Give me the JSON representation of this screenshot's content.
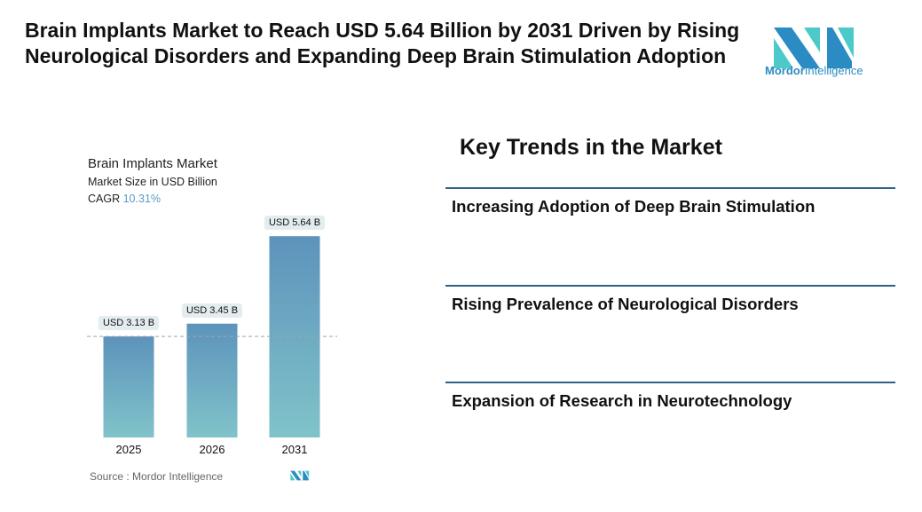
{
  "header": {
    "title": "Brain Implants Market to Reach USD 5.64 Billion by 2031 Driven by Rising Neurological Disorders and Expanding Deep Brain Stimulation Adoption",
    "logo_text_bold": "Mordor",
    "logo_text": "Intelligence"
  },
  "chart_data": {
    "type": "bar",
    "title": "Brain Implants Market",
    "subtitle": "Market Size in USD Billion",
    "cagr_label": "CAGR",
    "cagr_value": "10.31%",
    "categories": [
      "2025",
      "2026",
      "2031"
    ],
    "values": [
      3.13,
      3.45,
      5.64
    ],
    "data_labels": [
      "USD 3.13 B",
      "USD 3.45 B",
      "USD 5.64 B"
    ],
    "ylim": [
      0.6,
      6
    ],
    "reference_line_value": 3.13,
    "grid": false,
    "bar_gradient": [
      "#5d93bc",
      "#80c3c9"
    ],
    "source": "Source :  Mordor Intelligence"
  },
  "trends": {
    "title": "Key Trends in the Market",
    "items": [
      "Increasing Adoption of Deep Brain Stimulation",
      "Rising Prevalence of Neurological Disorders",
      "Expansion of Research in Neurotechnology"
    ]
  }
}
